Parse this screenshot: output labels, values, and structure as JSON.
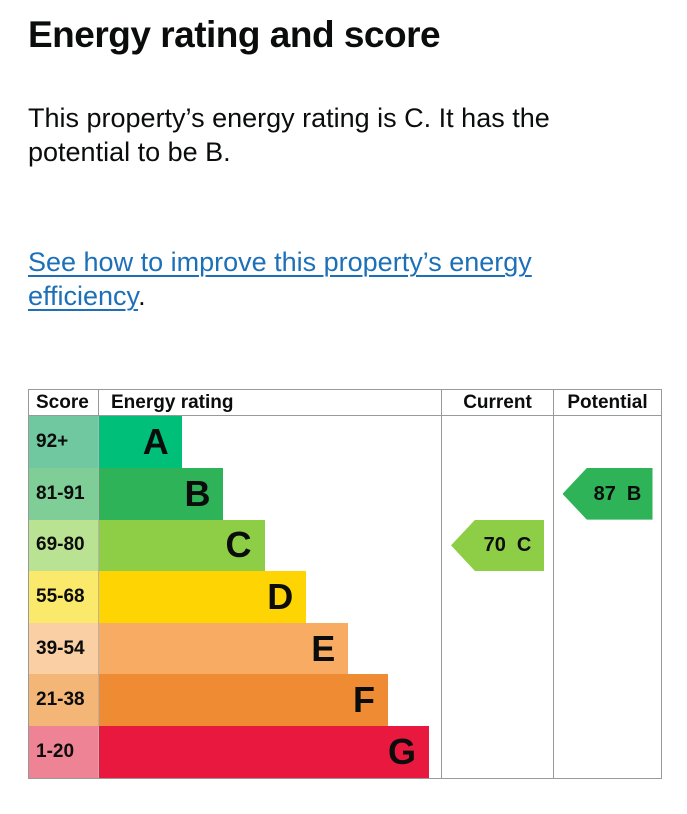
{
  "page": {
    "title": "Energy rating and score",
    "description": "This property’s energy rating is C. It has the potential to be B.",
    "link": {
      "text": "See how to improve this property’s energy efficiency",
      "suffix": ".",
      "color": "#1d70b8"
    }
  },
  "chart": {
    "headers": {
      "score": "Score",
      "rating": "Energy rating",
      "current": "Current",
      "potential": "Potential"
    },
    "bands": [
      {
        "letter": "A",
        "score_range": "92+",
        "band_color": "#00bf78",
        "tint_color": "#70c8a0",
        "bar_width_pct": 24.2
      },
      {
        "letter": "B",
        "score_range": "81-91",
        "band_color": "#2eb358",
        "tint_color": "#80ce97",
        "bar_width_pct": 36.4
      },
      {
        "letter": "C",
        "score_range": "69-80",
        "band_color": "#8dce46",
        "tint_color": "#bae293",
        "bar_width_pct": 48.4
      },
      {
        "letter": "D",
        "score_range": "55-68",
        "band_color": "#fed402",
        "tint_color": "#fbe96c",
        "bar_width_pct": 60.6
      },
      {
        "letter": "E",
        "score_range": "39-54",
        "band_color": "#f8ab63",
        "tint_color": "#f9cfa3",
        "bar_width_pct": 72.9
      },
      {
        "letter": "F",
        "score_range": "21-38",
        "band_color": "#ef8b33",
        "tint_color": "#f3b677",
        "bar_width_pct": 84.5
      },
      {
        "letter": "G",
        "score_range": "1-20",
        "band_color": "#e9183f",
        "tint_color": "#ef8396",
        "bar_width_pct": 96.5
      }
    ],
    "current": {
      "score": "70",
      "band": "C",
      "color": "#8dce46",
      "band_row": 2
    },
    "potential": {
      "score": "87",
      "band": "B",
      "color": "#2eb358",
      "band_row": 1
    }
  },
  "chart_data": {
    "type": "bar",
    "title": "Energy rating and score",
    "categories": [
      "A",
      "B",
      "C",
      "D",
      "E",
      "F",
      "G"
    ],
    "score_ranges": [
      "92+",
      "81-91",
      "69-80",
      "55-68",
      "39-54",
      "21-38",
      "1-20"
    ],
    "bar_lengths_relative": [
      1,
      1.5,
      2,
      2.5,
      3,
      3.5,
      4
    ],
    "current": {
      "score": 70,
      "band": "C"
    },
    "potential": {
      "score": 87,
      "band": "B"
    },
    "legend_position": "none",
    "grid": false
  }
}
